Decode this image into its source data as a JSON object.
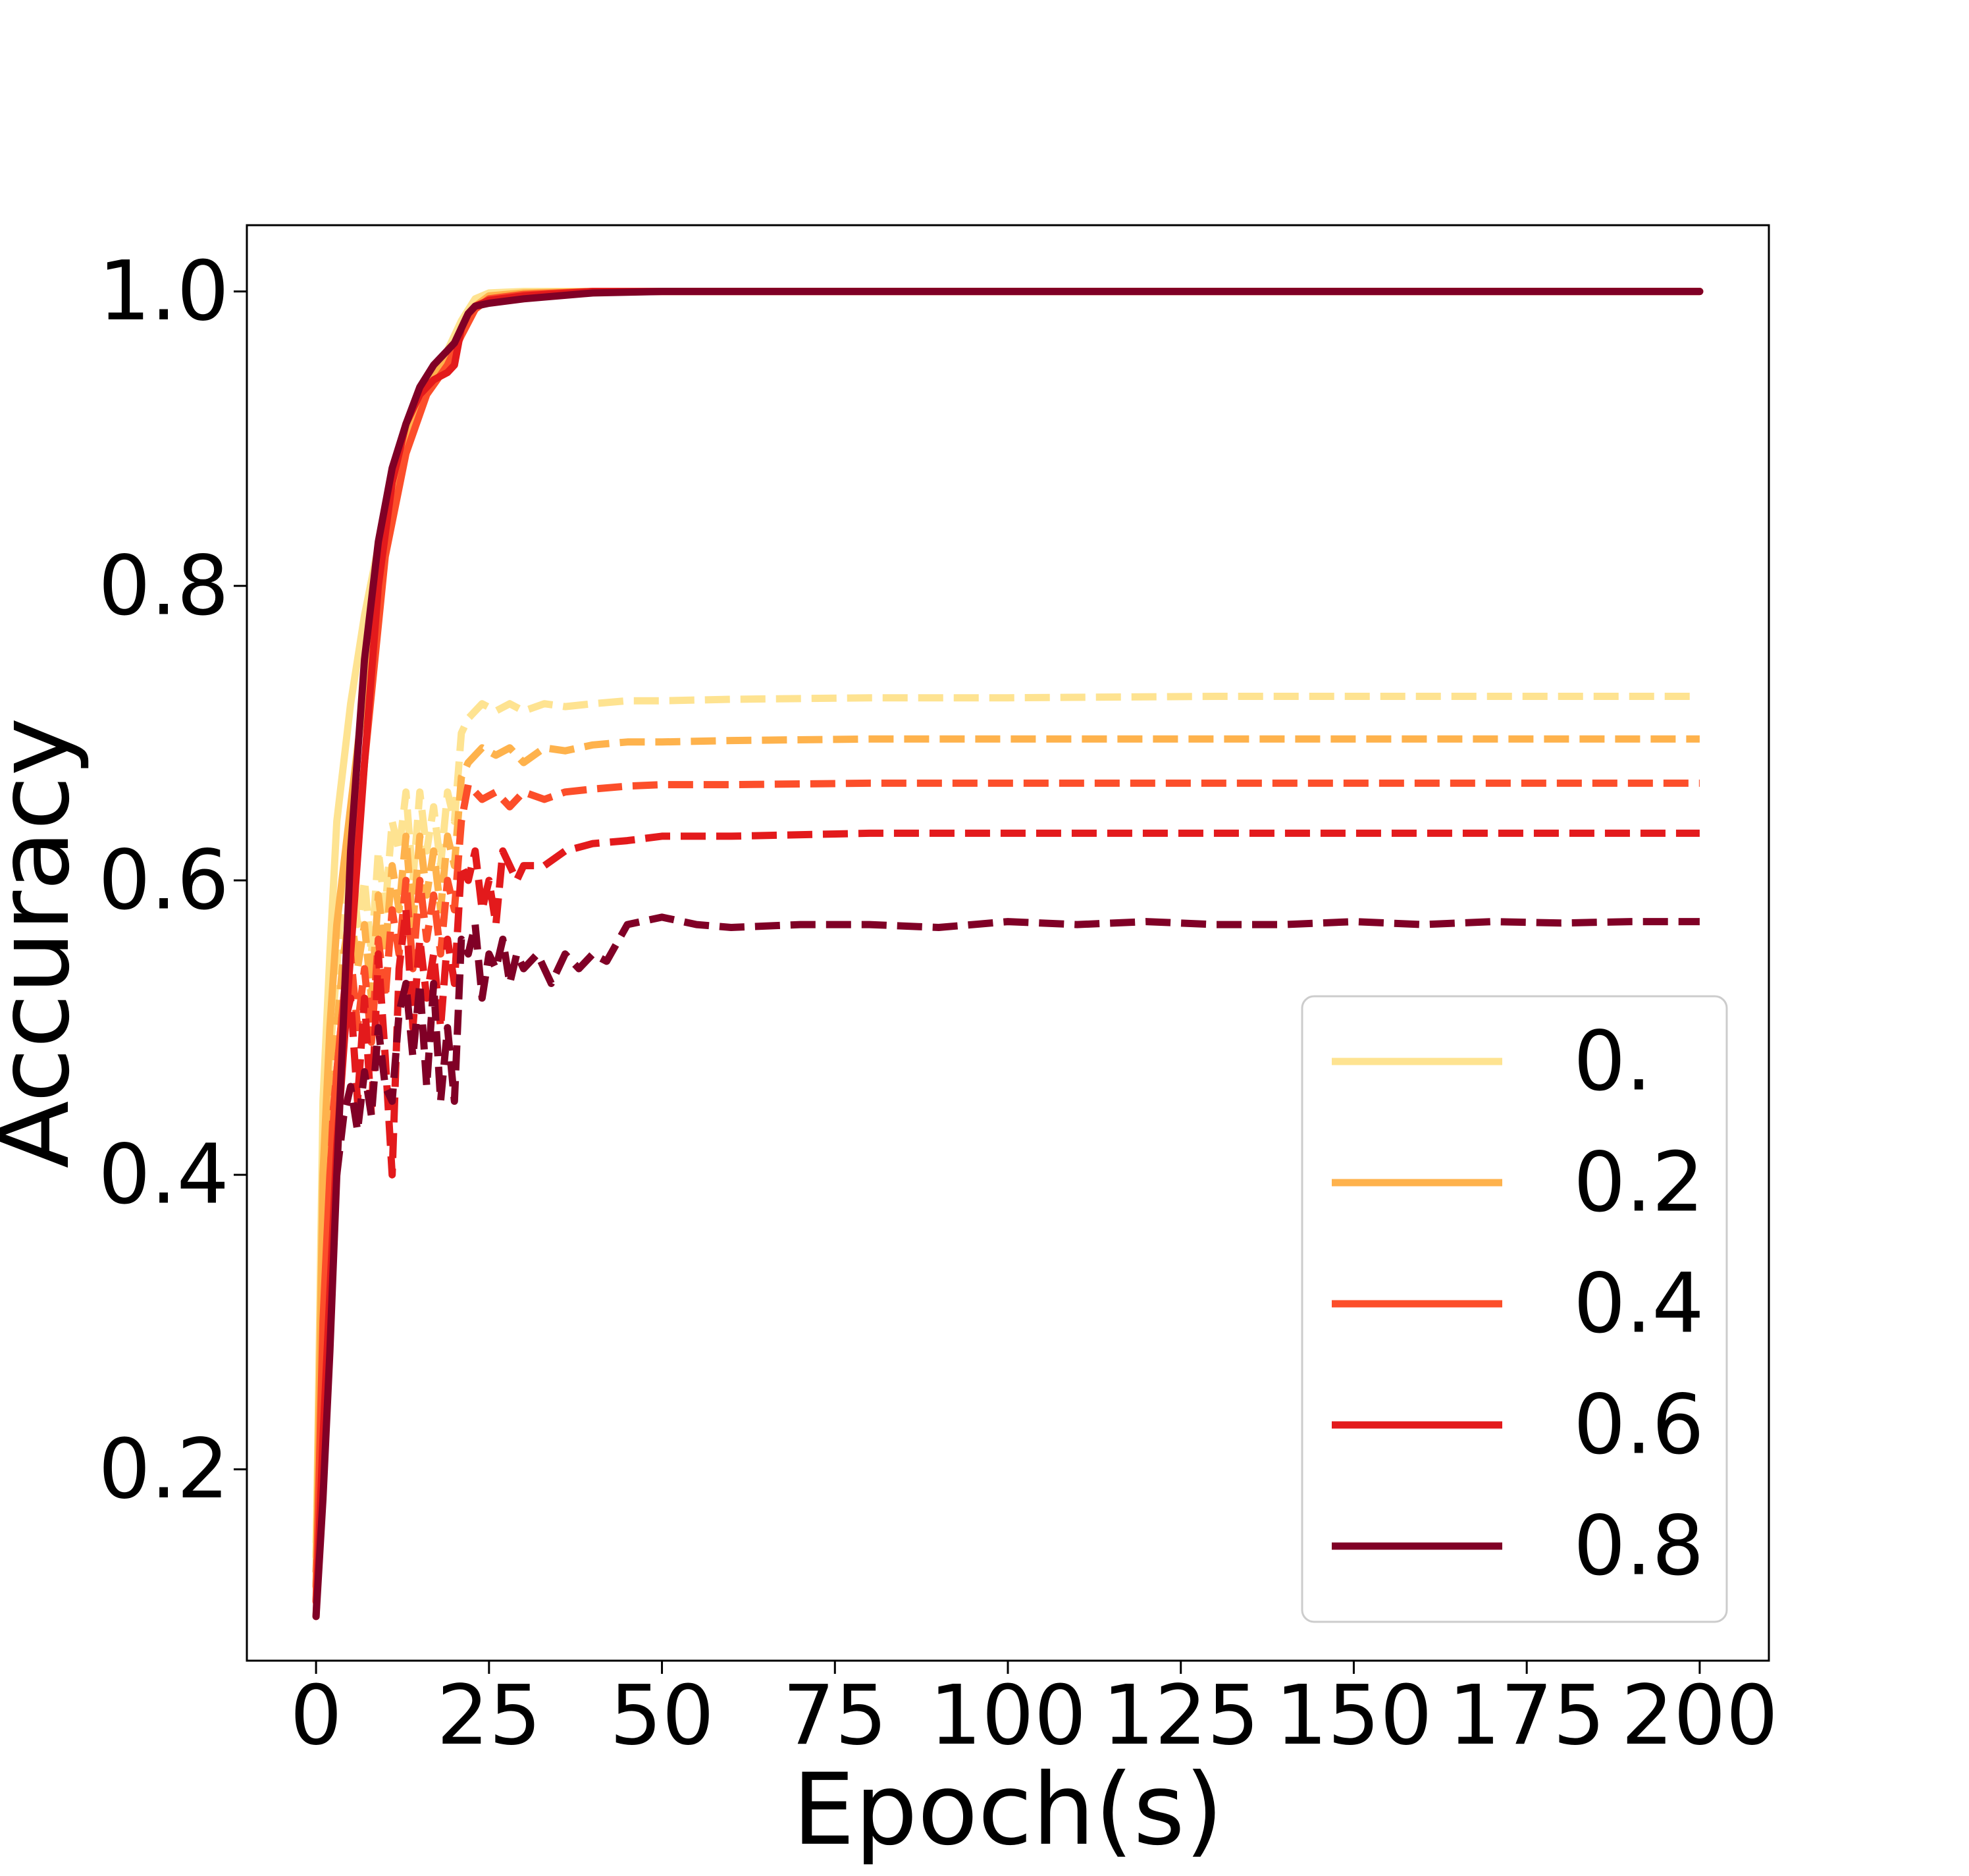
{
  "chart_data": {
    "type": "line",
    "title": "",
    "xlabel": "Epoch(s)",
    "ylabel": "Accuracy",
    "xlim": [
      -10,
      210
    ],
    "ylim": [
      0.07,
      1.045
    ],
    "xticks": [
      0,
      25,
      50,
      75,
      100,
      125,
      150,
      175,
      200
    ],
    "xtick_labels": [
      "0",
      "25",
      "50",
      "75",
      "100",
      "125",
      "150",
      "175",
      "200"
    ],
    "yticks": [
      0.2,
      0.4,
      0.6,
      0.8,
      1.0
    ],
    "ytick_labels": [
      "0.2",
      "0.4",
      "0.6",
      "0.8",
      "1.0"
    ],
    "grid": false,
    "legend_position": "lower-right",
    "line_styles": {
      "train": "solid",
      "test": "dashed"
    },
    "series": [
      {
        "name": "0.",
        "color": "#fee391",
        "train": {
          "x": [
            0,
            1,
            2,
            3,
            5,
            7,
            10,
            13,
            16,
            19,
            21,
            23,
            25,
            30,
            40,
            50,
            200
          ],
          "y": [
            0.14,
            0.45,
            0.55,
            0.64,
            0.72,
            0.78,
            0.85,
            0.9,
            0.94,
            0.96,
            0.98,
            0.995,
            0.999,
            1.0,
            1.0,
            1.0,
            1.0
          ]
        },
        "test": {
          "x": [
            0,
            1,
            2,
            3,
            4,
            5,
            6,
            7,
            8,
            9,
            10,
            11,
            12,
            13,
            14,
            15,
            16,
            17,
            18,
            19,
            20,
            21,
            22,
            24,
            26,
            28,
            30,
            33,
            36,
            40,
            45,
            50,
            60,
            80,
            100,
            130,
            160,
            200
          ],
          "y": [
            0.15,
            0.36,
            0.48,
            0.54,
            0.6,
            0.62,
            0.57,
            0.6,
            0.55,
            0.62,
            0.58,
            0.64,
            0.62,
            0.66,
            0.6,
            0.66,
            0.62,
            0.65,
            0.61,
            0.66,
            0.64,
            0.7,
            0.71,
            0.72,
            0.715,
            0.72,
            0.715,
            0.72,
            0.718,
            0.72,
            0.722,
            0.722,
            0.723,
            0.724,
            0.724,
            0.725,
            0.725,
            0.725
          ]
        }
      },
      {
        "name": "0.2",
        "color": "#feb24c",
        "train": {
          "x": [
            0,
            1,
            2,
            3,
            5,
            7,
            10,
            13,
            16,
            19,
            21,
            23,
            25,
            30,
            40,
            50,
            200
          ],
          "y": [
            0.12,
            0.4,
            0.5,
            0.57,
            0.65,
            0.73,
            0.84,
            0.9,
            0.935,
            0.955,
            0.975,
            0.99,
            0.997,
            0.999,
            1.0,
            1.0,
            1.0
          ]
        },
        "test": {
          "x": [
            0,
            1,
            2,
            3,
            4,
            5,
            6,
            7,
            8,
            9,
            10,
            11,
            12,
            13,
            14,
            15,
            16,
            17,
            18,
            19,
            20,
            21,
            22,
            24,
            26,
            28,
            30,
            33,
            36,
            40,
            45,
            50,
            60,
            80,
            100,
            130,
            160,
            200
          ],
          "y": [
            0.14,
            0.33,
            0.45,
            0.5,
            0.55,
            0.58,
            0.54,
            0.57,
            0.52,
            0.59,
            0.55,
            0.61,
            0.58,
            0.63,
            0.57,
            0.63,
            0.59,
            0.62,
            0.58,
            0.63,
            0.61,
            0.67,
            0.68,
            0.69,
            0.685,
            0.69,
            0.68,
            0.69,
            0.688,
            0.692,
            0.694,
            0.694,
            0.695,
            0.696,
            0.696,
            0.696,
            0.696,
            0.696
          ]
        }
      },
      {
        "name": "0.4",
        "color": "#fc4e2a",
        "train": {
          "x": [
            0,
            1,
            2,
            3,
            5,
            7,
            10,
            13,
            16,
            19,
            21,
            23,
            25,
            30,
            40,
            50,
            200
          ],
          "y": [
            0.11,
            0.3,
            0.4,
            0.47,
            0.57,
            0.68,
            0.82,
            0.89,
            0.93,
            0.95,
            0.97,
            0.988,
            0.995,
            0.998,
            1.0,
            1.0,
            1.0
          ]
        },
        "test": {
          "x": [
            0,
            1,
            2,
            3,
            4,
            5,
            6,
            7,
            8,
            9,
            10,
            11,
            12,
            13,
            14,
            15,
            16,
            17,
            18,
            19,
            20,
            21,
            22,
            24,
            26,
            28,
            30,
            33,
            36,
            40,
            45,
            50,
            60,
            80,
            100,
            130,
            160,
            200
          ],
          "y": [
            0.13,
            0.3,
            0.42,
            0.47,
            0.52,
            0.55,
            0.5,
            0.54,
            0.49,
            0.56,
            0.52,
            0.58,
            0.55,
            0.6,
            0.54,
            0.6,
            0.56,
            0.59,
            0.55,
            0.6,
            0.58,
            0.64,
            0.665,
            0.655,
            0.66,
            0.65,
            0.66,
            0.655,
            0.66,
            0.662,
            0.664,
            0.665,
            0.665,
            0.666,
            0.666,
            0.666,
            0.666,
            0.666
          ]
        }
      },
      {
        "name": "0.6",
        "color": "#e31a1c",
        "train": {
          "x": [
            0,
            1,
            2,
            3,
            5,
            7,
            9,
            11,
            13,
            15,
            17,
            19,
            20,
            21,
            22,
            23,
            25,
            30,
            40,
            50,
            200
          ],
          "y": [
            0.1,
            0.22,
            0.32,
            0.42,
            0.55,
            0.68,
            0.8,
            0.87,
            0.91,
            0.93,
            0.94,
            0.945,
            0.95,
            0.975,
            0.985,
            0.99,
            0.994,
            0.997,
            1.0,
            1.0,
            1.0
          ]
        },
        "test": {
          "x": [
            0,
            1,
            2,
            3,
            4,
            5,
            6,
            7,
            8,
            9,
            10,
            11,
            12,
            13,
            14,
            15,
            16,
            17,
            18,
            19,
            20,
            21,
            22,
            23,
            24,
            25,
            26,
            27,
            28,
            29,
            30,
            33,
            36,
            40,
            45,
            50,
            60,
            80,
            100,
            130,
            160,
            200
          ],
          "y": [
            0.12,
            0.28,
            0.4,
            0.46,
            0.5,
            0.52,
            0.45,
            0.52,
            0.44,
            0.55,
            0.48,
            0.4,
            0.54,
            0.58,
            0.5,
            0.56,
            0.52,
            0.55,
            0.5,
            0.56,
            0.53,
            0.61,
            0.6,
            0.62,
            0.58,
            0.6,
            0.57,
            0.62,
            0.61,
            0.6,
            0.61,
            0.61,
            0.62,
            0.625,
            0.627,
            0.63,
            0.63,
            0.632,
            0.632,
            0.632,
            0.632,
            0.632
          ]
        }
      },
      {
        "name": "0.8",
        "color": "#800026",
        "train": {
          "x": [
            0,
            1,
            2,
            3,
            5,
            7,
            9,
            11,
            13,
            15,
            17,
            19,
            20,
            21,
            22,
            23,
            25,
            30,
            40,
            50,
            200
          ],
          "y": [
            0.1,
            0.18,
            0.28,
            0.4,
            0.62,
            0.75,
            0.83,
            0.88,
            0.91,
            0.935,
            0.95,
            0.96,
            0.965,
            0.975,
            0.985,
            0.99,
            0.992,
            0.995,
            0.999,
            1.0,
            1.0
          ]
        },
        "test": {
          "x": [
            0,
            1,
            2,
            3,
            4,
            5,
            6,
            7,
            8,
            9,
            10,
            11,
            12,
            13,
            14,
            15,
            16,
            17,
            18,
            19,
            20,
            21,
            22,
            23,
            24,
            25,
            26,
            27,
            28,
            29,
            30,
            32,
            34,
            36,
            38,
            40,
            42,
            45,
            50,
            55,
            60,
            70,
            80,
            90,
            100,
            110,
            120,
            130,
            140,
            150,
            160,
            170,
            180,
            190,
            200
          ],
          "y": [
            0.11,
            0.22,
            0.32,
            0.4,
            0.44,
            0.46,
            0.43,
            0.47,
            0.44,
            0.5,
            0.46,
            0.45,
            0.51,
            0.53,
            0.48,
            0.53,
            0.46,
            0.53,
            0.45,
            0.5,
            0.45,
            0.56,
            0.55,
            0.57,
            0.52,
            0.55,
            0.54,
            0.56,
            0.53,
            0.55,
            0.54,
            0.55,
            0.53,
            0.55,
            0.54,
            0.55,
            0.545,
            0.57,
            0.575,
            0.57,
            0.568,
            0.57,
            0.57,
            0.568,
            0.572,
            0.57,
            0.572,
            0.57,
            0.57,
            0.572,
            0.57,
            0.572,
            0.571,
            0.572,
            0.572
          ]
        }
      }
    ]
  }
}
